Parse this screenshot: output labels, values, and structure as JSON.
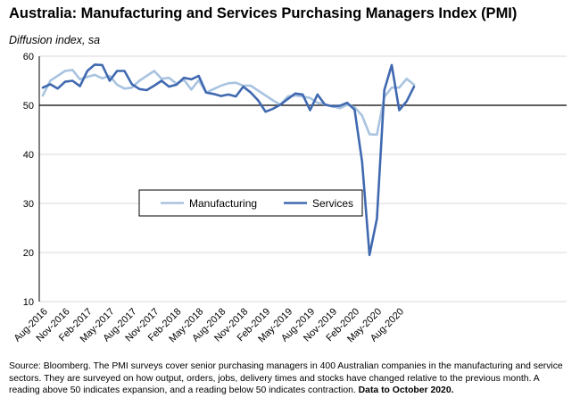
{
  "title": "Australia:  Manufacturing and Services Purchasing Managers Index (PMI)",
  "subtitle": "Diffusion index, sa",
  "source_text": "Source: Bloomberg.  The PMI surveys cover senior purchasing managers in 400 Australian companies in the manufacturing and service sectors.  They are surveyed on how output, orders, jobs, delivery times and stocks have changed relative to the previous month.  A reading above 50 indicates expansion, and a reading below 50 indicates contraction.",
  "source_bold": "Data to October 2020.",
  "chart_data": {
    "type": "line",
    "ylim": [
      10,
      60
    ],
    "yticks": [
      10,
      20,
      30,
      40,
      50,
      60
    ],
    "reference_line": 50,
    "xlabels": [
      {
        "index": 0,
        "label": "Aug-2016"
      },
      {
        "index": 3,
        "label": "Nov-2016"
      },
      {
        "index": 6,
        "label": "Feb-2017"
      },
      {
        "index": 9,
        "label": "May-2017"
      },
      {
        "index": 12,
        "label": "Aug-2017"
      },
      {
        "index": 15,
        "label": "Nov-2017"
      },
      {
        "index": 18,
        "label": "Feb-2018"
      },
      {
        "index": 21,
        "label": "May-2018"
      },
      {
        "index": 24,
        "label": "Aug-2018"
      },
      {
        "index": 27,
        "label": "Nov-2018"
      },
      {
        "index": 30,
        "label": "Feb-2019"
      },
      {
        "index": 33,
        "label": "May-2019"
      },
      {
        "index": 36,
        "label": "Aug-2019"
      },
      {
        "index": 39,
        "label": "Nov-2019"
      },
      {
        "index": 42,
        "label": "Feb-2020"
      },
      {
        "index": 45,
        "label": "May-2020"
      },
      {
        "index": 48,
        "label": "Aug-2020"
      }
    ],
    "legend": {
      "placement": "center-left"
    },
    "series": [
      {
        "name": "Manufacturing",
        "color": "#a9c3e0",
        "values": [
          52,
          55,
          56,
          57,
          57.2,
          55.3,
          55.8,
          56.2,
          55.5,
          56,
          54.2,
          53.4,
          53.6,
          55,
          56,
          57,
          55.4,
          55.6,
          54.4,
          55.2,
          53.2,
          55.1,
          52.6,
          53.3,
          54,
          54.5,
          54.6,
          54,
          54,
          53,
          52,
          51,
          50.1,
          51.8,
          52,
          51.8,
          51.5,
          50.5,
          50.2,
          49.8,
          49.4,
          50.1,
          49.6,
          47.9,
          44.1,
          44,
          51.7,
          53.6,
          53.6,
          55.4,
          54.2
        ]
      },
      {
        "name": "Services",
        "color": "#4069b0",
        "values": [
          53.6,
          54.3,
          53.4,
          54.8,
          55,
          53.9,
          57,
          58.3,
          58.2,
          55,
          57,
          57,
          54.3,
          53.3,
          53.1,
          54,
          55,
          53.8,
          54.2,
          55.6,
          55.3,
          56,
          52.6,
          52.3,
          51.9,
          52.2,
          51.8,
          53.8,
          52.6,
          51,
          48.7,
          49.3,
          50.1,
          51.3,
          52.4,
          52.2,
          49,
          52.2,
          50.1,
          49.8,
          49.9,
          50.5,
          49.1,
          38.5,
          19.5,
          26.9,
          53.1,
          58.2,
          49,
          50.8,
          53.8
        ]
      }
    ]
  }
}
